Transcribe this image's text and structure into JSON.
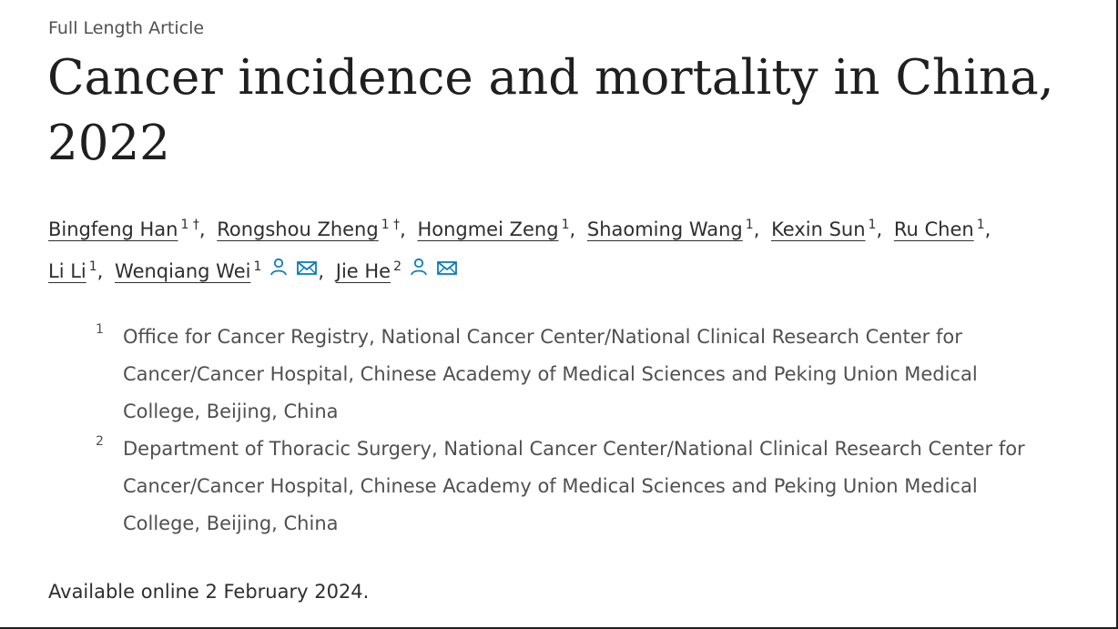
{
  "article_type": "Full Length Article",
  "title": "Cancer incidence and mortality in China, 2022",
  "authors": [
    {
      "name": "Bingfeng Han",
      "sup": "1 †",
      "icons": []
    },
    {
      "name": "Rongshou Zheng",
      "sup": "1 †",
      "icons": []
    },
    {
      "name": "Hongmei Zeng",
      "sup": "1",
      "icons": []
    },
    {
      "name": "Shaoming Wang",
      "sup": "1",
      "icons": []
    },
    {
      "name": "Kexin Sun",
      "sup": "1",
      "icons": []
    },
    {
      "name": "Ru Chen",
      "sup": "1",
      "icons": []
    },
    {
      "name": "Li Li",
      "sup": "1",
      "icons": []
    },
    {
      "name": "Wenqiang Wei",
      "sup": "1",
      "icons": [
        "person-icon",
        "envelope-icon"
      ]
    },
    {
      "name": "Jie He",
      "sup": "2",
      "icons": [
        "person-icon",
        "envelope-icon"
      ]
    }
  ],
  "affiliations": [
    {
      "num": "1",
      "text": "Office for Cancer Registry, National Cancer Center/National Clinical Research Center for Cancer/Cancer Hospital, Chinese Academy of Medical Sciences and Peking Union Medical College, Beijing, China"
    },
    {
      "num": "2",
      "text": "Department of Thoracic Surgery, National Cancer Center/National Clinical Research Center for Cancer/Cancer Hospital, Chinese Academy of Medical Sciences and Peking Union Medical College, Beijing, China"
    }
  ],
  "available_online": "Available online 2 February 2024.",
  "colors": {
    "link_icon": "#0c7dbb",
    "text": "#2e2e2e",
    "muted": "#505050"
  }
}
